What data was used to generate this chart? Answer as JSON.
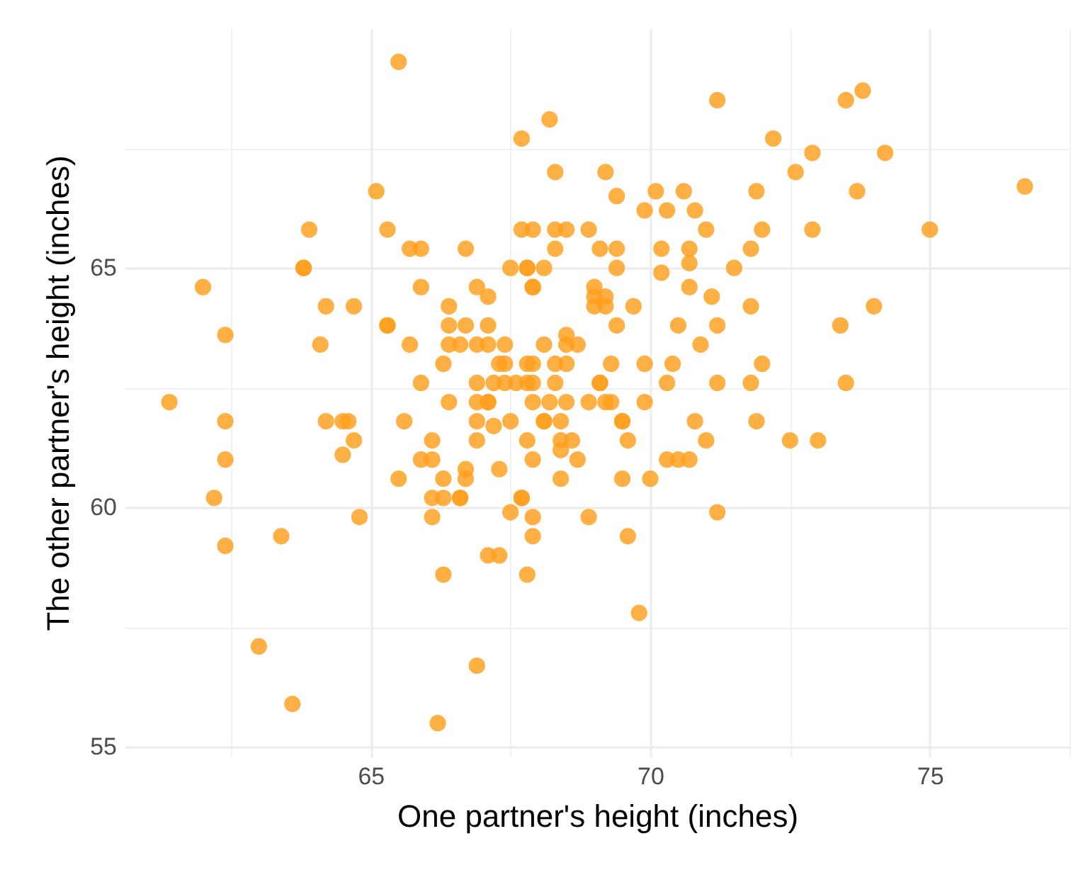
{
  "chart_data": {
    "type": "scatter",
    "xlabel": "One partner's height (inches)",
    "ylabel": "The other partner's height (inches)",
    "xlim": [
      60.6,
      77.5
    ],
    "ylim": [
      54.8,
      70.0
    ],
    "xticks": [
      {
        "value": 62.5,
        "label": null
      },
      65,
      {
        "value": 67.5,
        "label": null
      },
      70,
      {
        "value": 72.5,
        "label": null
      },
      75,
      {
        "value": 77.5,
        "label": null
      }
    ],
    "yticks": [
      55,
      {
        "value": 57.5,
        "label": null
      },
      60,
      {
        "value": 62.5,
        "label": null
      },
      65,
      {
        "value": 67.5,
        "label": null
      }
    ],
    "grid": true,
    "marker": "circle",
    "series": [
      {
        "color": "#ff9f1c",
        "x": [
          65.5,
          71.2,
          73.8,
          73.5,
          72.2,
          72.9,
          74.2,
          72.6,
          73.7,
          76.7,
          75.0,
          72.9,
          68.2,
          67.7,
          68.3,
          69.2,
          65.1,
          63.9,
          65.3,
          65.7,
          65.9,
          66.7,
          67.7,
          67.9,
          68.3,
          68.5,
          68.9,
          68.3,
          69.1,
          63.8,
          63.8,
          67.5,
          67.8,
          67.8,
          68.1,
          69.4,
          70.1,
          70.6,
          71.9,
          69.9,
          70.3,
          70.8,
          71.0,
          72.0,
          69.4,
          70.2,
          70.7,
          71.8,
          69.4,
          70.7,
          70.2,
          71.5,
          69.0,
          69.2,
          69.0,
          69.2,
          70.7,
          71.1,
          69.7,
          71.8,
          74.0,
          69.4,
          70.5,
          71.2,
          73.4,
          70.9,
          69.3,
          69.9,
          70.4,
          72.0,
          69.1,
          69.1,
          70.3,
          71.2,
          71.8,
          73.5,
          69.3,
          69.9,
          69.5,
          69.5,
          70.8,
          71.9,
          69.6,
          71.0,
          72.5,
          73.0,
          70.3,
          70.5,
          70.7,
          69.5,
          70.0,
          71.2,
          69.6,
          69.8,
          61.4,
          62.4,
          64.2,
          64.5,
          64.6,
          64.7,
          64.5,
          62.4,
          62.2,
          64.8,
          62.4,
          63.4,
          63.0,
          63.6,
          66.2,
          66.9,
          66.3,
          67.8,
          67.1,
          67.3,
          67.9,
          67.9,
          67.5,
          68.9,
          66.1,
          67.7,
          67.7,
          66.1,
          66.3,
          66.6,
          66.6,
          65.5,
          66.3,
          66.7,
          66.7,
          67.3,
          68.4,
          65.9,
          66.1,
          67.9,
          68.7,
          66.1,
          66.9,
          67.8,
          68.4,
          68.4,
          68.6,
          65.6,
          66.9,
          67.2,
          67.5,
          68.1,
          68.1,
          68.4,
          66.4,
          66.9,
          67.1,
          67.1,
          67.9,
          68.2,
          68.5,
          68.9,
          69.2,
          62.0,
          62.4,
          64.2,
          64.7,
          64.1,
          65.9,
          65.3,
          65.3,
          65.7,
          65.9,
          66.4,
          66.4,
          66.7,
          67.1,
          66.9,
          67.1,
          66.3,
          66.4,
          66.6,
          66.9,
          67.1,
          67.4,
          68.1,
          68.5,
          68.7,
          68.5,
          67.3,
          67.4,
          67.8,
          67.9,
          68.3,
          68.5,
          66.9,
          67.2,
          67.4,
          67.6,
          67.8,
          67.9,
          68.3,
          67.9,
          67.9,
          69.0
        ],
        "values": [
          69.3,
          68.5,
          68.7,
          68.5,
          67.7,
          67.4,
          67.4,
          67.0,
          66.6,
          66.7,
          65.8,
          65.8,
          68.1,
          67.7,
          67.0,
          67.0,
          66.6,
          65.8,
          65.8,
          65.4,
          65.4,
          65.4,
          65.8,
          65.8,
          65.8,
          65.8,
          65.8,
          65.4,
          65.4,
          65.0,
          65.0,
          65.0,
          65.0,
          65.0,
          65.0,
          66.5,
          66.6,
          66.6,
          66.6,
          66.2,
          66.2,
          66.2,
          65.8,
          65.8,
          65.4,
          65.4,
          65.4,
          65.4,
          65.0,
          65.1,
          64.9,
          65.0,
          64.6,
          64.4,
          64.2,
          64.2,
          64.6,
          64.4,
          64.2,
          64.2,
          64.2,
          63.8,
          63.8,
          63.8,
          63.8,
          63.4,
          63.0,
          63.0,
          63.0,
          63.0,
          62.6,
          62.6,
          62.6,
          62.6,
          62.6,
          62.6,
          62.2,
          62.2,
          61.8,
          61.8,
          61.8,
          61.8,
          61.4,
          61.4,
          61.4,
          61.4,
          61.0,
          61.0,
          61.0,
          60.6,
          60.6,
          59.9,
          59.4,
          57.8,
          62.2,
          61.8,
          61.8,
          61.8,
          61.8,
          61.4,
          61.1,
          61.0,
          60.2,
          59.8,
          59.2,
          59.4,
          57.1,
          55.9,
          55.5,
          56.7,
          58.6,
          58.6,
          59.0,
          59.0,
          59.4,
          59.8,
          59.9,
          59.8,
          59.8,
          60.2,
          60.2,
          60.2,
          60.2,
          60.2,
          60.2,
          60.6,
          60.6,
          60.6,
          60.8,
          60.8,
          60.6,
          61.0,
          61.0,
          61.0,
          61.0,
          61.4,
          61.4,
          61.4,
          61.2,
          61.4,
          61.4,
          61.8,
          61.8,
          61.7,
          61.8,
          61.8,
          61.8,
          61.8,
          62.2,
          62.2,
          62.2,
          62.2,
          62.2,
          62.2,
          62.2,
          62.2,
          62.2,
          64.6,
          63.6,
          64.2,
          64.2,
          63.4,
          64.6,
          63.8,
          63.8,
          63.4,
          62.6,
          64.2,
          63.8,
          63.8,
          63.8,
          64.6,
          64.4,
          63.0,
          63.4,
          63.4,
          63.4,
          63.4,
          63.4,
          63.4,
          63.4,
          63.4,
          63.6,
          63.0,
          63.0,
          63.0,
          63.0,
          63.0,
          63.0,
          62.6,
          62.6,
          62.6,
          62.6,
          62.6,
          62.6,
          62.6,
          64.6,
          64.6,
          64.4
        ]
      }
    ]
  }
}
